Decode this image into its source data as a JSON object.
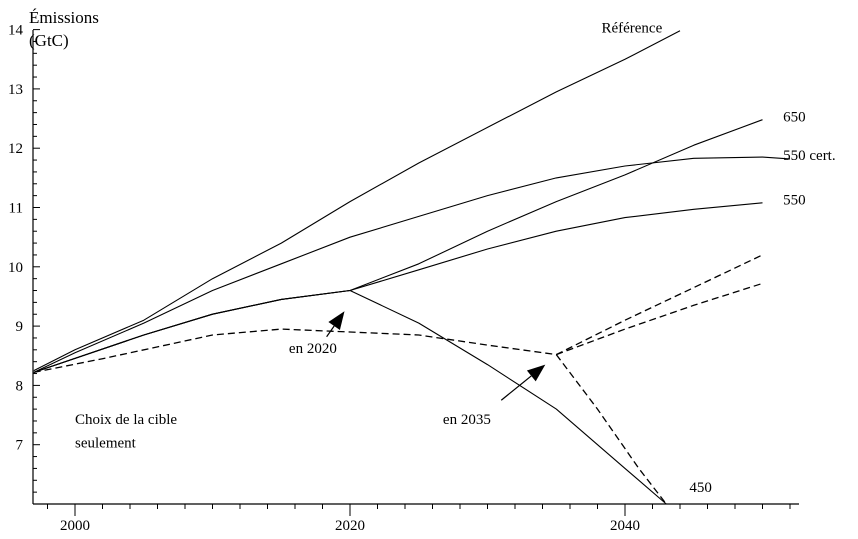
{
  "chart_data": {
    "type": "line",
    "ylabel": [
      "Émissions",
      "(GtC)"
    ],
    "xlim": [
      1997,
      2052
    ],
    "ylim": [
      6,
      14
    ],
    "x_ticks": [
      2000,
      2020,
      2040
    ],
    "y_ticks": [
      7,
      8,
      9,
      10,
      11,
      12,
      13,
      14
    ],
    "series": [
      {
        "name": "Référence",
        "style": "solid",
        "points": [
          [
            1997,
            8.25
          ],
          [
            2000,
            8.6
          ],
          [
            2005,
            9.1
          ],
          [
            2010,
            9.8
          ],
          [
            2015,
            10.4
          ],
          [
            2020,
            11.1
          ],
          [
            2025,
            11.75
          ],
          [
            2030,
            12.35
          ],
          [
            2035,
            12.95
          ],
          [
            2040,
            13.5
          ],
          [
            2044,
            13.98
          ]
        ]
      },
      {
        "name": "650",
        "style": "solid",
        "points": [
          [
            1997,
            8.22
          ],
          [
            2005,
            8.85
          ],
          [
            2010,
            9.2
          ],
          [
            2015,
            9.45
          ],
          [
            2020,
            9.6
          ],
          [
            2025,
            10.05
          ],
          [
            2030,
            10.6
          ],
          [
            2035,
            11.1
          ],
          [
            2040,
            11.55
          ],
          [
            2045,
            12.05
          ],
          [
            2050,
            12.48
          ]
        ]
      },
      {
        "name": "550 cert.",
        "style": "solid",
        "points": [
          [
            1997,
            8.22
          ],
          [
            2000,
            8.55
          ],
          [
            2005,
            9.05
          ],
          [
            2010,
            9.6
          ],
          [
            2015,
            10.05
          ],
          [
            2020,
            10.5
          ],
          [
            2025,
            10.85
          ],
          [
            2030,
            11.2
          ],
          [
            2035,
            11.5
          ],
          [
            2040,
            11.7
          ],
          [
            2045,
            11.83
          ],
          [
            2050,
            11.85
          ],
          [
            2052,
            11.82
          ]
        ]
      },
      {
        "name": "550",
        "style": "solid",
        "points": [
          [
            1997,
            8.22
          ],
          [
            2005,
            8.85
          ],
          [
            2010,
            9.2
          ],
          [
            2015,
            9.45
          ],
          [
            2020,
            9.6
          ],
          [
            2025,
            9.95
          ],
          [
            2030,
            10.3
          ],
          [
            2035,
            10.6
          ],
          [
            2040,
            10.83
          ],
          [
            2045,
            10.97
          ],
          [
            2050,
            11.08
          ]
        ]
      },
      {
        "name": "450",
        "style": "solid",
        "points": [
          [
            1997,
            8.22
          ],
          [
            2005,
            8.85
          ],
          [
            2010,
            9.2
          ],
          [
            2015,
            9.45
          ],
          [
            2020,
            9.6
          ],
          [
            2025,
            9.05
          ],
          [
            2030,
            8.35
          ],
          [
            2035,
            7.6
          ],
          [
            2040,
            6.6
          ],
          [
            2043,
            6.0
          ]
        ]
      },
      {
        "name": "",
        "style": "dashed",
        "points": [
          [
            1997,
            8.22
          ],
          [
            2002,
            8.45
          ],
          [
            2006,
            8.65
          ],
          [
            2010,
            8.85
          ],
          [
            2015,
            8.95
          ],
          [
            2020,
            8.9
          ],
          [
            2025,
            8.85
          ],
          [
            2030,
            8.68
          ],
          [
            2035,
            8.52
          ],
          [
            2040,
            9.1
          ],
          [
            2045,
            9.65
          ],
          [
            2050,
            10.2
          ]
        ]
      },
      {
        "name": "",
        "style": "dashed",
        "points": [
          [
            2035,
            8.52
          ],
          [
            2040,
            8.95
          ],
          [
            2045,
            9.35
          ],
          [
            2050,
            9.72
          ]
        ]
      },
      {
        "name": "",
        "style": "dashed",
        "points": [
          [
            2035,
            8.52
          ],
          [
            2038,
            7.6
          ],
          [
            2041,
            6.6
          ],
          [
            2043,
            6.0
          ]
        ]
      }
    ],
    "annotations": [
      {
        "text": "Référence",
        "x": 2040.5,
        "y": 13.95,
        "anchor": "middle"
      },
      {
        "text": "650",
        "x": 2051.5,
        "y": 12.45,
        "anchor": "start"
      },
      {
        "text": "550 cert.",
        "x": 2051.5,
        "y": 11.8,
        "anchor": "start"
      },
      {
        "text": "550",
        "x": 2051.5,
        "y": 11.05,
        "anchor": "start"
      },
      {
        "text": "450",
        "x": 2045.5,
        "y": 6.2,
        "anchor": "middle"
      },
      {
        "text": "en 2020",
        "x": 2017.3,
        "y": 8.55,
        "anchor": "middle"
      },
      {
        "text": "en 2035",
        "x": 2028.5,
        "y": 7.35,
        "anchor": "middle"
      },
      {
        "text": "Choix de la cible",
        "x": 2000,
        "y": 7.35,
        "anchor": "start"
      },
      {
        "text": "seulement",
        "x": 2000,
        "y": 6.95,
        "anchor": "start"
      }
    ],
    "arrows": [
      {
        "label": "en 2020",
        "from": [
          2018.3,
          8.82
        ],
        "to": [
          2019.6,
          9.25
        ]
      },
      {
        "label": "en 2035",
        "from": [
          2031,
          7.75
        ],
        "to": [
          2034.2,
          8.35
        ]
      }
    ]
  }
}
